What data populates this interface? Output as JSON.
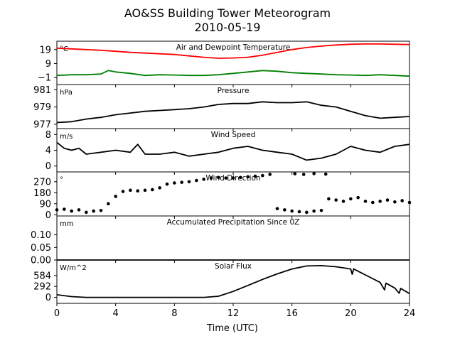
{
  "figure": {
    "title_line1": "AO&SS Building Tower Meteorogram",
    "title_line2": "2010-05-19",
    "xlabel": "Time (UTC)"
  },
  "chart_data": [
    {
      "type": "line",
      "title": "Air and Dewpoint Temperature",
      "unit": "°C",
      "xlim": [
        0,
        24
      ],
      "ylim": [
        -6,
        25
      ],
      "yticks": [
        -1,
        9,
        19
      ],
      "series": [
        {
          "color": "#ff0000",
          "x": [
            0,
            1,
            2,
            3,
            4,
            5,
            6,
            7,
            8,
            9,
            10,
            11,
            12,
            13,
            14,
            15,
            16,
            17,
            18,
            19,
            20,
            21,
            22,
            23,
            24
          ],
          "y": [
            20,
            19.5,
            19,
            18.5,
            17.8,
            17,
            16.5,
            16,
            15.5,
            14.5,
            13.5,
            12.8,
            13,
            13.5,
            15,
            17,
            19,
            20.5,
            21.5,
            22.3,
            22.8,
            23,
            23,
            22.8,
            22.6
          ]
        },
        {
          "color": "#008000",
          "x": [
            0,
            1,
            2,
            3,
            3.5,
            4,
            5,
            6,
            7,
            8,
            9,
            10,
            11,
            12,
            13,
            14,
            15,
            16,
            17,
            18,
            19,
            20,
            21,
            22,
            23,
            24
          ],
          "y": [
            0.5,
            1,
            1,
            1.5,
            4,
            3,
            2,
            0.5,
            1,
            0.8,
            0.5,
            0.5,
            1,
            2,
            3,
            4,
            3.5,
            2.5,
            2,
            1.5,
            1,
            0.8,
            0.5,
            1,
            0.5,
            0
          ]
        }
      ]
    },
    {
      "type": "line",
      "title": "Pressure",
      "unit": "hPa",
      "xlim": [
        0,
        24
      ],
      "ylim": [
        976.5,
        981.6
      ],
      "yticks": [
        977,
        979,
        981
      ],
      "series": [
        {
          "color": "#000000",
          "x": [
            0,
            1,
            2,
            3,
            4,
            5,
            6,
            7,
            8,
            9,
            10,
            11,
            12,
            13,
            14,
            15,
            16,
            17,
            18,
            19,
            20,
            21,
            22,
            23,
            24
          ],
          "y": [
            977.2,
            977.3,
            977.6,
            977.8,
            978.1,
            978.3,
            978.5,
            978.6,
            978.7,
            978.8,
            979.0,
            979.3,
            979.4,
            979.4,
            979.6,
            979.5,
            979.5,
            979.6,
            979.2,
            979.0,
            978.5,
            978.0,
            977.7,
            977.8,
            977.9
          ]
        }
      ]
    },
    {
      "type": "line",
      "title": "Wind Speed",
      "unit": "m/s",
      "xlim": [
        0,
        24
      ],
      "ylim": [
        -1.5,
        9.5
      ],
      "yticks": [
        0,
        4,
        8
      ],
      "series": [
        {
          "color": "#000000",
          "x": [
            0,
            0.5,
            1,
            1.5,
            2,
            3,
            4,
            5,
            5.5,
            6,
            7,
            8,
            9,
            10,
            11,
            12,
            13,
            14,
            15,
            16,
            17,
            18,
            19,
            20,
            21,
            22,
            23,
            24
          ],
          "y": [
            6,
            4.5,
            4,
            4.5,
            3,
            3.5,
            4,
            3.5,
            5.5,
            3,
            3,
            3.5,
            2.5,
            3,
            3.5,
            4.5,
            5,
            4,
            3.5,
            3,
            1.5,
            2,
            3,
            5,
            4,
            3.5,
            5,
            5.5
          ]
        }
      ]
    },
    {
      "type": "scatter",
      "title": "Wind Direction",
      "unit": "°",
      "xlim": [
        0,
        24
      ],
      "ylim": [
        -10,
        350
      ],
      "yticks": [
        0,
        90,
        180,
        270
      ],
      "series": [
        {
          "color": "#000000",
          "x": [
            0,
            0.5,
            1,
            1.5,
            2,
            2.5,
            3,
            3.5,
            4,
            4.5,
            5,
            5.5,
            6,
            6.5,
            7,
            7.5,
            8,
            8.5,
            9,
            9.5,
            10,
            10.5,
            11,
            11.5,
            12,
            12.5,
            13,
            13.5,
            14,
            14.5,
            15,
            15.5,
            16,
            16.5,
            17,
            17.5,
            18,
            18.5,
            19,
            19.5,
            20,
            20.5,
            21,
            21.5,
            22,
            22.5,
            23,
            23.5,
            24
          ],
          "y": [
            40,
            45,
            30,
            40,
            20,
            30,
            35,
            90,
            150,
            190,
            200,
            195,
            200,
            205,
            220,
            250,
            260,
            265,
            270,
            280,
            290,
            300,
            305,
            300,
            300,
            305,
            310,
            315,
            320,
            330,
            50,
            40,
            30,
            25,
            20,
            30,
            35,
            130,
            120,
            110,
            130,
            140,
            110,
            100,
            110,
            120,
            105,
            115,
            100
          ]
        },
        {
          "color": "#000000",
          "x": [
            16.2,
            16.8,
            17.5,
            18.3
          ],
          "y": [
            335,
            330,
            336,
            332
          ]
        }
      ]
    },
    {
      "type": "line",
      "title": "Accumulated Precipitation Since 0Z",
      "unit": "mm",
      "xlim": [
        0,
        24
      ],
      "ylim": [
        0,
        0.175
      ],
      "yticks": [
        0.0,
        0.05,
        0.1
      ],
      "ytick_labels": [
        "0.00",
        "0.05",
        "0.10"
      ],
      "series": [
        {
          "color": "#000000",
          "x": [
            0,
            24
          ],
          "y": [
            0,
            0
          ]
        }
      ]
    },
    {
      "type": "line",
      "title": "Solar Flux",
      "unit": "W/m^2",
      "xlim": [
        0,
        24
      ],
      "ylim": [
        -160,
        1000
      ],
      "yticks": [
        0,
        292,
        584
      ],
      "series": [
        {
          "color": "#000000",
          "x": [
            0,
            1,
            2,
            3,
            4,
            5,
            6,
            7,
            8,
            9,
            10,
            11,
            12,
            13,
            14,
            15,
            16,
            17,
            18,
            19,
            20,
            20.1,
            20.2,
            21,
            22,
            22.3,
            22.4,
            23,
            23.3,
            23.4,
            24
          ],
          "y": [
            70,
            20,
            0,
            0,
            0,
            0,
            0,
            0,
            0,
            0,
            0,
            30,
            160,
            320,
            480,
            630,
            760,
            840,
            850,
            820,
            760,
            620,
            760,
            600,
            400,
            200,
            380,
            250,
            110,
            240,
            100
          ]
        }
      ]
    }
  ],
  "xaxis": {
    "ticks": [
      0,
      4,
      8,
      12,
      16,
      20,
      24
    ]
  }
}
